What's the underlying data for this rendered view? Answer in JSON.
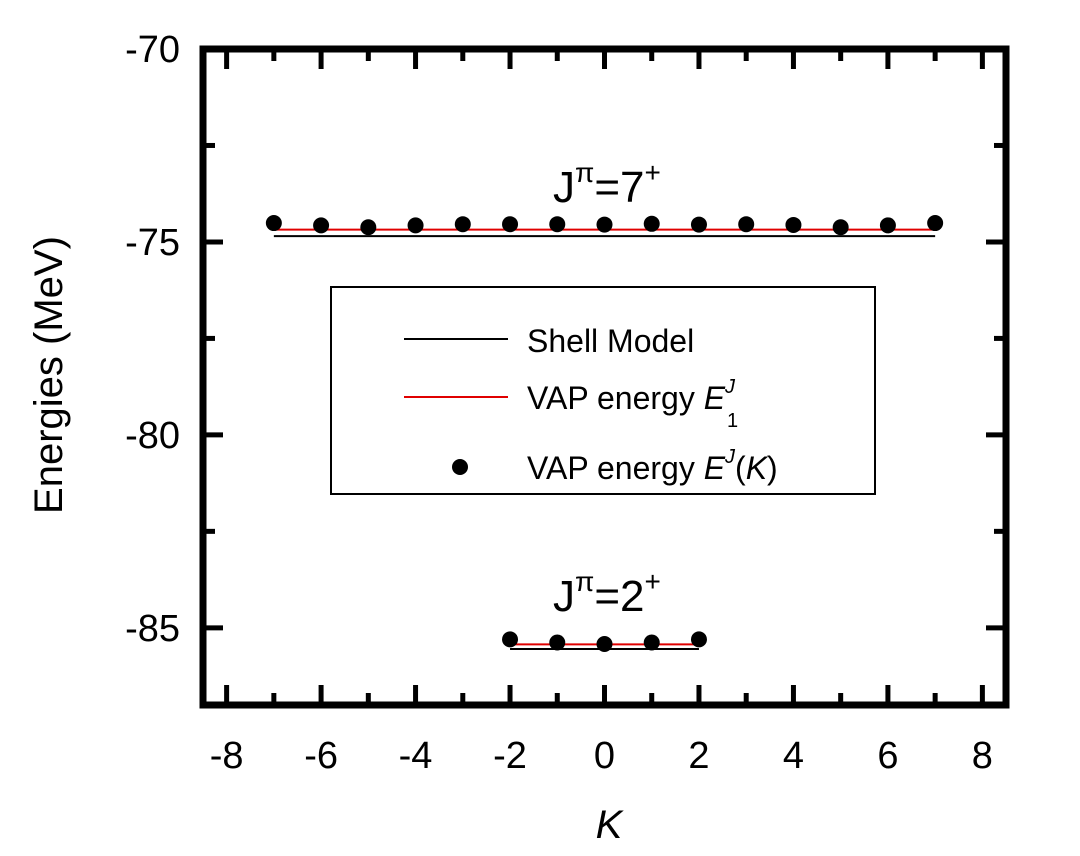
{
  "chart_data": {
    "type": "scatter",
    "xlabel": "K",
    "ylabel": "Energies (MeV)",
    "xlim": [
      -8.5,
      8.5
    ],
    "ylim": [
      -87,
      -70
    ],
    "xticks": [
      -8,
      -6,
      -4,
      -2,
      0,
      2,
      4,
      6,
      8
    ],
    "yticks": [
      -85,
      -80,
      -75,
      -70
    ],
    "xtick_labels": [
      "-8",
      "-6",
      "-4",
      "-2",
      "0",
      "2",
      "4",
      "6",
      "8"
    ],
    "ytick_labels": [
      "-85",
      "-80",
      "-75",
      "-70"
    ],
    "grid": false,
    "legend_position": "center",
    "legend": {
      "shell": "Shell Model",
      "vap_line_prefix": "VAP energy ",
      "vap_line_symbol": "E",
      "vap_line_sup": "J",
      "vap_line_sub": "1",
      "vap_points_prefix": "VAP energy ",
      "vap_points_symbol": "E",
      "vap_points_sup": "J",
      "vap_points_paren_open": "(",
      "vap_points_arg": "K",
      "vap_points_paren_close": ")"
    },
    "annotations": {
      "j7_base": "J",
      "j7_sup1": "π",
      "j7_mid": "=7",
      "j7_sup2": "+",
      "j2_base": "J",
      "j2_sup1": "π",
      "j2_mid": "=2",
      "j2_sup2": "+"
    },
    "colors": {
      "shell": "#000000",
      "vap_line": "#e00000",
      "points": "#000000"
    },
    "groups": [
      {
        "label": "J=7+",
        "shell_model": {
          "x_range": [
            -7,
            7
          ],
          "y": -74.85
        },
        "vap_line": {
          "x_range": [
            -7,
            7
          ],
          "y": -74.68
        },
        "vap_points": {
          "x": [
            -7,
            -6,
            -5,
            -4,
            -3,
            -2,
            -1,
            0,
            1,
            2,
            3,
            4,
            5,
            6,
            7
          ],
          "y": [
            -74.51,
            -74.57,
            -74.62,
            -74.57,
            -74.54,
            -74.54,
            -74.54,
            -74.55,
            -74.53,
            -74.55,
            -74.54,
            -74.56,
            -74.62,
            -74.57,
            -74.51
          ]
        }
      },
      {
        "label": "J=2+",
        "shell_model": {
          "x_range": [
            -2,
            2
          ],
          "y": -85.55
        },
        "vap_line": {
          "x_range": [
            -2,
            2
          ],
          "y": -85.43
        },
        "vap_points": {
          "x": [
            -2,
            -1,
            0,
            1,
            2
          ],
          "y": [
            -85.3,
            -85.38,
            -85.42,
            -85.38,
            -85.3
          ]
        }
      }
    ]
  }
}
